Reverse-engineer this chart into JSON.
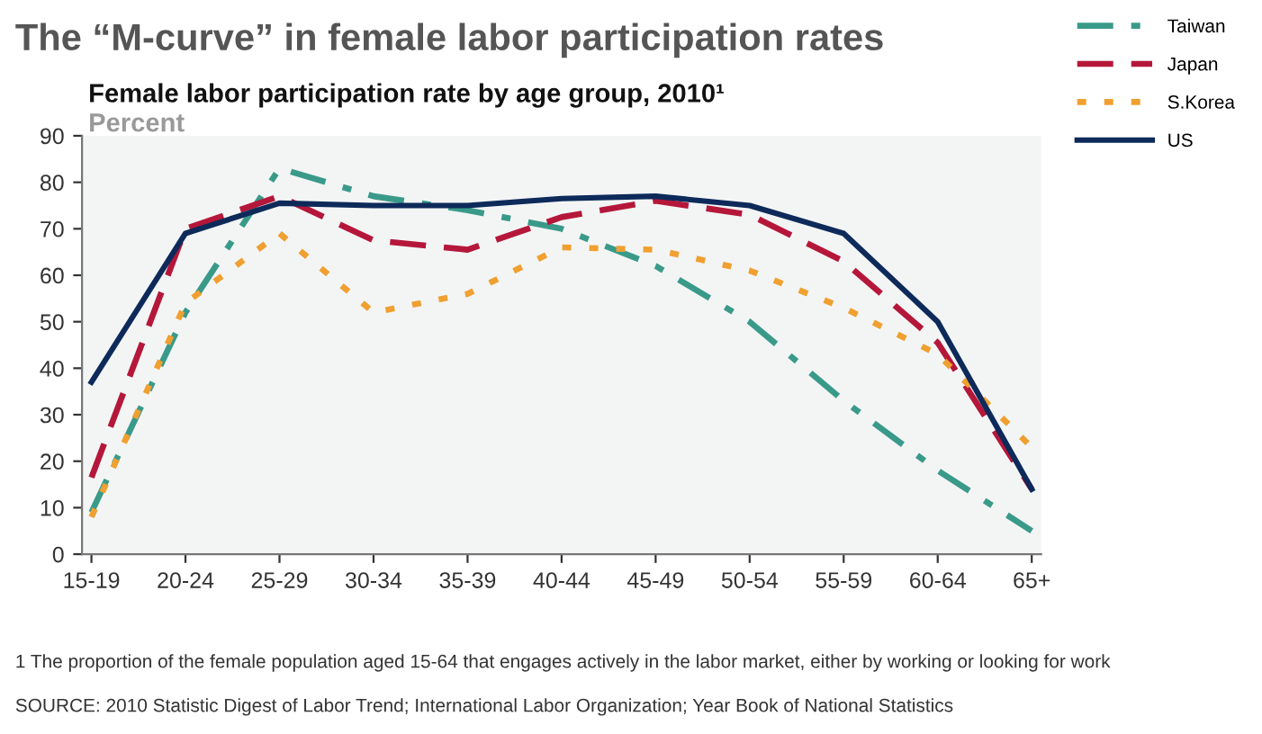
{
  "chart_data": {
    "type": "line",
    "title": "The “M-curve” in female labor participation rates",
    "subtitle": "Female labor participation rate by age group, 2010¹",
    "ylabel": "Percent",
    "categories": [
      "15-19",
      "20-24",
      "25-29",
      "30-34",
      "35-39",
      "40-44",
      "45-49",
      "50-54",
      "55-59",
      "60-64",
      "65+"
    ],
    "series": [
      {
        "name": "Taiwan",
        "color": "#3a9a8a",
        "line_style": "dashdot",
        "values": [
          9,
          52,
          83,
          77,
          74,
          70,
          62,
          50,
          33,
          18,
          5
        ]
      },
      {
        "name": "Japan",
        "color": "#b5173a",
        "line_style": "dashed",
        "values": [
          16.5,
          70,
          77,
          67.5,
          65.5,
          72.5,
          76,
          73,
          63,
          45.5,
          14
        ]
      },
      {
        "name": "S.Korea",
        "color": "#f0a030",
        "line_style": "dotted",
        "values": [
          8,
          54,
          69,
          52,
          56,
          66,
          65.5,
          61,
          53,
          43,
          23
        ]
      },
      {
        "name": "US",
        "color": "#0d2a5a",
        "line_style": "solid",
        "values": [
          37,
          69,
          75.5,
          75,
          75,
          76.5,
          77,
          75,
          69,
          50,
          14
        ]
      }
    ],
    "ylim": [
      0,
      90
    ],
    "yticks": [
      0,
      10,
      20,
      30,
      40,
      50,
      60,
      70,
      80,
      90
    ],
    "grid": false,
    "legend": "top right",
    "marker": "none",
    "annotations": [
      "1 The proportion of the female population aged 15-64 that engages actively in the labor market, either by working or looking for work",
      "SOURCE: 2010 Statistic Digest of Labor Trend; International Labor Organization; Year Book of National Statistics"
    ]
  }
}
